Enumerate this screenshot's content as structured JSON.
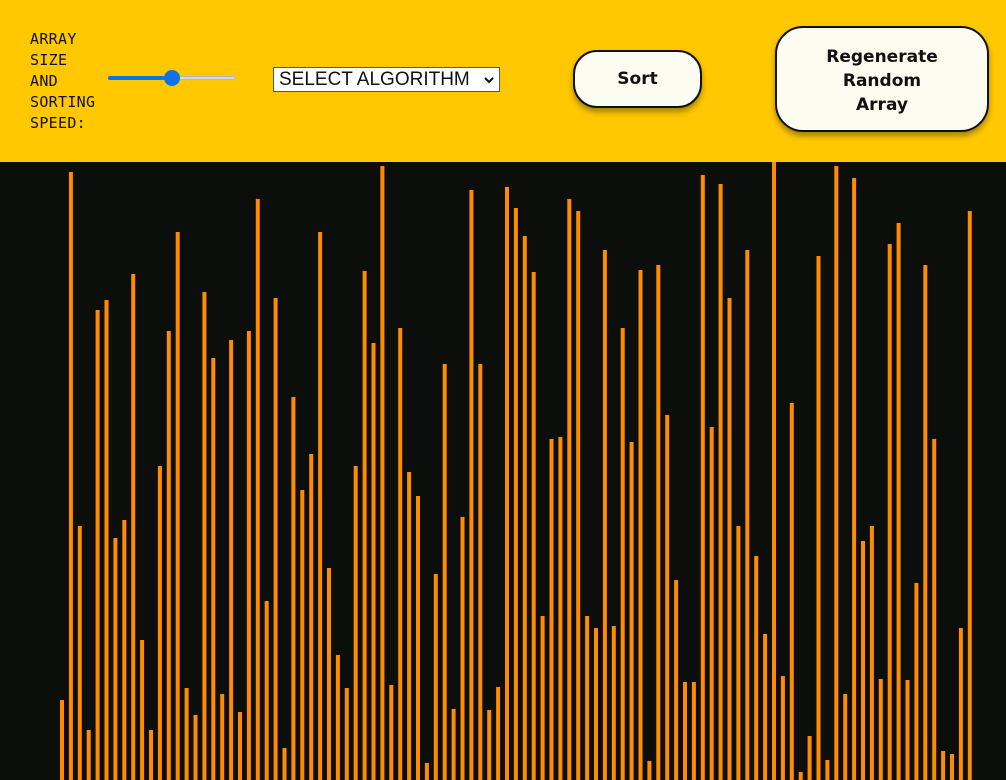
{
  "controls": {
    "size_label_lines": [
      "ARRAY",
      "SIZE",
      "AND",
      "SORTING",
      "SPEED:"
    ],
    "slider_value_fraction": 0.5,
    "algorithm_select_value": "SELECT ALGORITHM",
    "sort_label": "Sort",
    "regen_label_lines": [
      "Regenerate",
      "Random",
      "Array"
    ]
  },
  "colors": {
    "header_bg": "#ffc800",
    "canvas_bg": "#0c0e0b",
    "bar": "#ff8c00",
    "slider_accent": "#0d73e8"
  },
  "icons": {
    "select_arrow": "chevron-down-icon"
  },
  "array": {
    "max_value": 618,
    "values": [
      80,
      608,
      254,
      50,
      470,
      480,
      242,
      260,
      506,
      140,
      50,
      314,
      449,
      548,
      92,
      65,
      488,
      422,
      86,
      440,
      68,
      449,
      581,
      179,
      482,
      32,
      383,
      290,
      326,
      548,
      212,
      125,
      92,
      314,
      509,
      437,
      614,
      95,
      452,
      308,
      284,
      17,
      206,
      416,
      71,
      263,
      590,
      416,
      70,
      93,
      593,
      572,
      544,
      508,
      164,
      341,
      343,
      581,
      569,
      164,
      152,
      530,
      154,
      452,
      338,
      510,
      19,
      515,
      365,
      200,
      98,
      98,
      605,
      353,
      596,
      482,
      254,
      530,
      224,
      146,
      618,
      104,
      377,
      8,
      44,
      524,
      20,
      614,
      86,
      602,
      239,
      254,
      101,
      536,
      557,
      100,
      197,
      515,
      341,
      29,
      26,
      152,
      569
    ]
  }
}
